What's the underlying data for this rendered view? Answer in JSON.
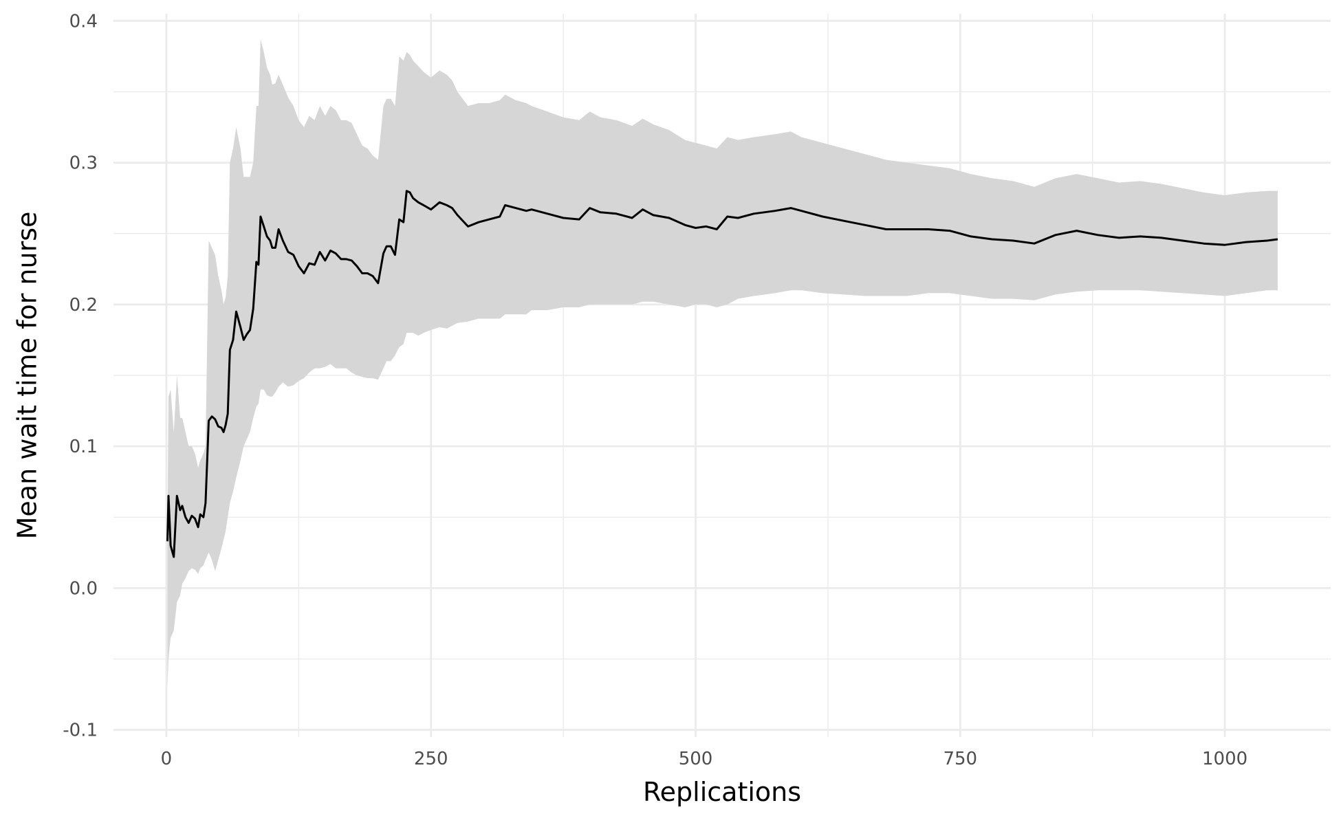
{
  "chart_data": {
    "type": "line",
    "title": "",
    "xlabel": "Replications",
    "ylabel": "Mean wait time for nurse",
    "xlim": [
      -50,
      1100
    ],
    "ylim": [
      -0.105,
      0.405
    ],
    "x_ticks": [
      0,
      250,
      500,
      750,
      1000
    ],
    "x_tick_labels": [
      "0",
      "250",
      "500",
      "750",
      "1000"
    ],
    "y_ticks": [
      -0.1,
      0.0,
      0.1,
      0.2,
      0.3,
      0.4
    ],
    "y_tick_labels": [
      "-0.1",
      "0.0",
      "0.1",
      "0.2",
      "0.3",
      "0.4"
    ],
    "grid": true,
    "colors": {
      "line": "#000000",
      "ribbon": "#d6d6d6",
      "grid": "#ebebeb"
    },
    "series": [
      {
        "x": [
          1,
          2,
          4,
          7,
          10,
          13,
          15,
          18,
          21,
          24,
          27,
          30,
          32,
          35,
          37,
          40,
          43,
          46,
          49,
          52,
          54,
          56,
          58,
          60,
          63,
          66,
          70,
          73,
          76,
          79,
          82,
          85,
          87,
          89,
          92,
          95,
          98,
          100,
          103,
          106,
          110,
          115,
          120,
          125,
          130,
          135,
          140,
          145,
          150,
          155,
          160,
          165,
          170,
          175,
          180,
          185,
          190,
          195,
          200,
          205,
          208,
          212,
          216,
          220,
          224,
          227,
          230,
          233,
          238,
          243,
          250,
          258,
          265,
          270,
          275,
          285,
          295,
          305,
          315,
          320,
          330,
          340,
          345,
          360,
          375,
          390,
          400,
          410,
          425,
          440,
          450,
          460,
          475,
          490,
          500,
          510,
          520,
          530,
          540,
          555,
          575,
          590,
          600,
          620,
          640,
          660,
          680,
          700,
          720,
          740,
          760,
          780,
          800,
          820,
          840,
          860,
          880,
          900,
          920,
          940,
          960,
          980,
          1000,
          1020,
          1040,
          1050
        ],
        "y": [
          0.033,
          0.065,
          0.03,
          0.022,
          0.065,
          0.055,
          0.058,
          0.05,
          0.046,
          0.051,
          0.049,
          0.043,
          0.052,
          0.05,
          0.06,
          0.118,
          0.121,
          0.119,
          0.114,
          0.113,
          0.11,
          0.115,
          0.123,
          0.168,
          0.175,
          0.195,
          0.184,
          0.175,
          0.179,
          0.182,
          0.197,
          0.23,
          0.228,
          0.262,
          0.255,
          0.248,
          0.245,
          0.24,
          0.24,
          0.253,
          0.245,
          0.237,
          0.235,
          0.227,
          0.222,
          0.229,
          0.228,
          0.237,
          0.231,
          0.238,
          0.236,
          0.232,
          0.232,
          0.231,
          0.227,
          0.222,
          0.222,
          0.22,
          0.215,
          0.236,
          0.241,
          0.241,
          0.235,
          0.26,
          0.258,
          0.28,
          0.279,
          0.275,
          0.272,
          0.27,
          0.267,
          0.272,
          0.27,
          0.268,
          0.263,
          0.255,
          0.258,
          0.26,
          0.262,
          0.27,
          0.268,
          0.266,
          0.267,
          0.264,
          0.261,
          0.26,
          0.268,
          0.265,
          0.264,
          0.261,
          0.267,
          0.263,
          0.261,
          0.256,
          0.254,
          0.255,
          0.253,
          0.262,
          0.261,
          0.264,
          0.266,
          0.268,
          0.266,
          0.262,
          0.259,
          0.256,
          0.253,
          0.253,
          0.253,
          0.252,
          0.248,
          0.246,
          0.245,
          0.243,
          0.249,
          0.252,
          0.249,
          0.247,
          0.248,
          0.247,
          0.245,
          0.243,
          0.242,
          0.244,
          0.245,
          0.246
        ],
        "lower": [
          -0.07,
          -0.05,
          -0.035,
          -0.03,
          -0.01,
          -0.005,
          0.003,
          0.007,
          0.012,
          0.014,
          0.013,
          0.01,
          0.014,
          0.016,
          0.02,
          0.025,
          0.02,
          0.012,
          0.02,
          0.028,
          0.034,
          0.04,
          0.05,
          0.06,
          0.068,
          0.078,
          0.09,
          0.1,
          0.105,
          0.11,
          0.12,
          0.128,
          0.13,
          0.14,
          0.14,
          0.136,
          0.135,
          0.135,
          0.138,
          0.142,
          0.145,
          0.142,
          0.143,
          0.146,
          0.148,
          0.152,
          0.155,
          0.155,
          0.156,
          0.158,
          0.155,
          0.155,
          0.155,
          0.152,
          0.15,
          0.149,
          0.148,
          0.148,
          0.147,
          0.155,
          0.16,
          0.16,
          0.164,
          0.17,
          0.172,
          0.18,
          0.18,
          0.18,
          0.178,
          0.18,
          0.182,
          0.184,
          0.183,
          0.185,
          0.187,
          0.188,
          0.19,
          0.19,
          0.19,
          0.193,
          0.193,
          0.193,
          0.196,
          0.196,
          0.198,
          0.198,
          0.2,
          0.2,
          0.2,
          0.2,
          0.202,
          0.202,
          0.2,
          0.198,
          0.2,
          0.2,
          0.198,
          0.2,
          0.204,
          0.206,
          0.208,
          0.21,
          0.21,
          0.208,
          0.207,
          0.206,
          0.206,
          0.206,
          0.208,
          0.208,
          0.206,
          0.204,
          0.204,
          0.203,
          0.207,
          0.209,
          0.21,
          0.21,
          0.21,
          0.209,
          0.208,
          0.207,
          0.206,
          0.208,
          0.21,
          0.21
        ],
        "upper": [
          0.04,
          0.135,
          0.14,
          0.11,
          0.15,
          0.12,
          0.12,
          0.11,
          0.1,
          0.1,
          0.095,
          0.085,
          0.09,
          0.095,
          0.1,
          0.245,
          0.24,
          0.235,
          0.22,
          0.21,
          0.2,
          0.205,
          0.22,
          0.3,
          0.31,
          0.325,
          0.31,
          0.29,
          0.29,
          0.29,
          0.3,
          0.34,
          0.34,
          0.387,
          0.378,
          0.367,
          0.362,
          0.355,
          0.356,
          0.362,
          0.355,
          0.346,
          0.34,
          0.33,
          0.325,
          0.333,
          0.33,
          0.34,
          0.333,
          0.34,
          0.337,
          0.33,
          0.33,
          0.328,
          0.32,
          0.312,
          0.31,
          0.305,
          0.302,
          0.34,
          0.345,
          0.345,
          0.34,
          0.375,
          0.372,
          0.378,
          0.376,
          0.372,
          0.368,
          0.364,
          0.36,
          0.365,
          0.362,
          0.358,
          0.35,
          0.34,
          0.342,
          0.342,
          0.344,
          0.348,
          0.344,
          0.342,
          0.34,
          0.336,
          0.332,
          0.33,
          0.336,
          0.332,
          0.33,
          0.326,
          0.331,
          0.327,
          0.323,
          0.316,
          0.314,
          0.312,
          0.31,
          0.318,
          0.316,
          0.318,
          0.32,
          0.322,
          0.318,
          0.314,
          0.31,
          0.306,
          0.302,
          0.3,
          0.298,
          0.296,
          0.292,
          0.289,
          0.287,
          0.283,
          0.289,
          0.292,
          0.289,
          0.286,
          0.287,
          0.285,
          0.282,
          0.279,
          0.277,
          0.279,
          0.28,
          0.28
        ]
      }
    ]
  }
}
